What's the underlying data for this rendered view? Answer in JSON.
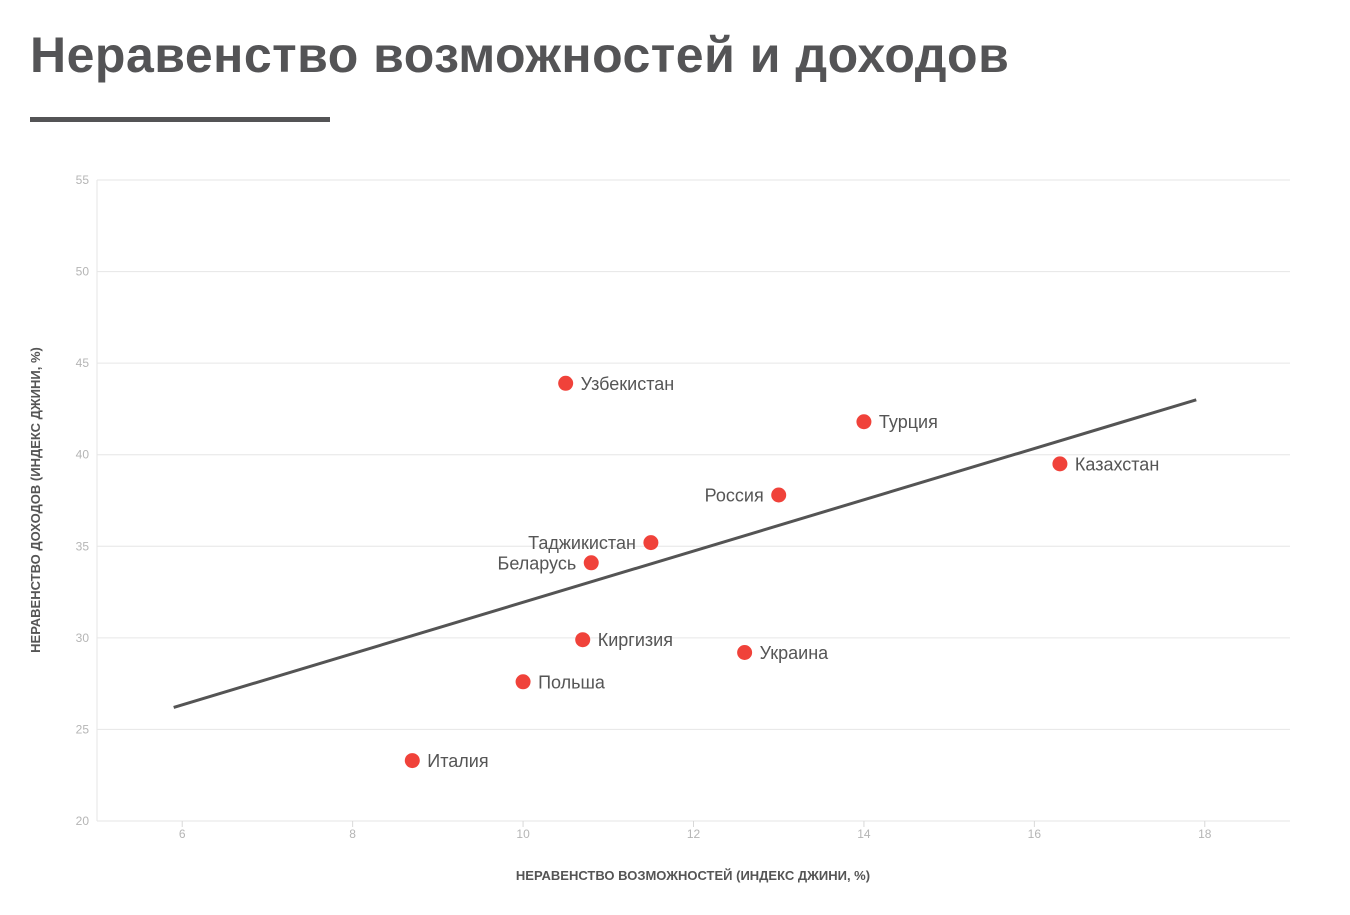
{
  "title": "Неравенство возможностей и доходов",
  "chart_data": {
    "type": "scatter",
    "xlabel": "НЕРАВЕНСТВО ВОЗМОЖНОСТЕЙ (ИНДЕКС ДЖИНИ, %)",
    "ylabel": "НЕРАВЕНСТВО ДОХОДОВ (ИНДЕКС ДЖИНИ, %)",
    "xlim": [
      5,
      19
    ],
    "ylim": [
      20,
      55
    ],
    "x_ticks": [
      6,
      8,
      10,
      12,
      14,
      16,
      18
    ],
    "y_ticks": [
      20,
      25,
      30,
      35,
      40,
      45,
      50,
      55
    ],
    "grid": "horizontal",
    "point_color": "#f0423a",
    "line_color": "#545454",
    "points": [
      {
        "label": "Узбекистан",
        "x": 10.5,
        "y": 43.9,
        "label_side": "right"
      },
      {
        "label": "Турция",
        "x": 14.0,
        "y": 41.8,
        "label_side": "right"
      },
      {
        "label": "Казахстан",
        "x": 16.3,
        "y": 39.5,
        "label_side": "right"
      },
      {
        "label": "Россия",
        "x": 13.0,
        "y": 37.8,
        "label_side": "left"
      },
      {
        "label": "Таджикистан",
        "x": 11.5,
        "y": 35.2,
        "label_side": "left"
      },
      {
        "label": "Беларусь",
        "x": 10.8,
        "y": 34.1,
        "label_side": "left"
      },
      {
        "label": "Киргизия",
        "x": 10.7,
        "y": 29.9,
        "label_side": "right"
      },
      {
        "label": "Украина",
        "x": 12.6,
        "y": 29.2,
        "label_side": "right"
      },
      {
        "label": "Польша",
        "x": 10.0,
        "y": 27.6,
        "label_side": "right"
      },
      {
        "label": "Италия",
        "x": 8.7,
        "y": 23.3,
        "label_side": "right"
      }
    ],
    "trendline": {
      "x": [
        5.9,
        17.9
      ],
      "y": [
        26.2,
        43.0
      ]
    }
  }
}
